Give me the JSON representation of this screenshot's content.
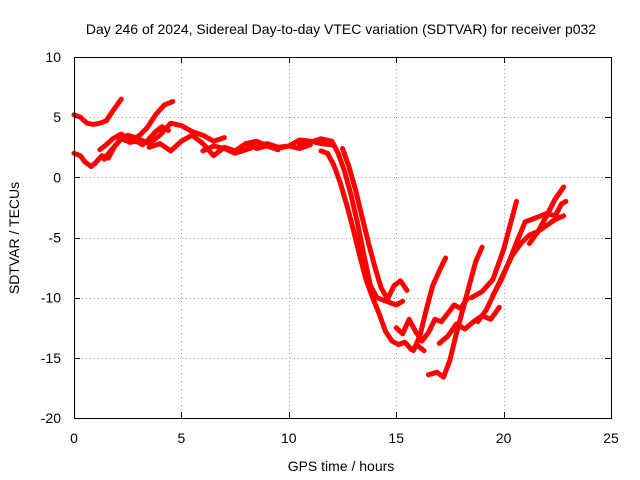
{
  "chart_data": {
    "type": "line",
    "title": "Day 246 of 2024, Sidereal Day-to-day VTEC variation (SDTVAR) for receiver p032",
    "xlabel": "GPS time / hours",
    "ylabel": "SDTVAR / TECUs",
    "xlim": [
      0,
      25
    ],
    "ylim": [
      -20,
      10
    ],
    "xticks": [
      0,
      5,
      10,
      15,
      20,
      25
    ],
    "yticks": [
      -20,
      -15,
      -10,
      -5,
      0,
      5,
      10
    ],
    "grid": true,
    "series_color": "#ff0000",
    "series": [
      {
        "name": "trace-1",
        "x": [
          0.0,
          0.3,
          0.6,
          0.9,
          1.2,
          1.5,
          1.8,
          2.0,
          2.2
        ],
        "y": [
          5.2,
          5.0,
          4.5,
          4.4,
          4.5,
          4.7,
          5.5,
          6.0,
          6.5
        ]
      },
      {
        "name": "trace-2",
        "x": [
          0.0,
          0.3,
          0.5,
          0.8,
          1.0,
          1.3,
          1.6,
          1.9,
          2.2,
          2.5,
          2.8,
          3.0
        ],
        "y": [
          2.0,
          1.8,
          1.3,
          0.9,
          1.2,
          1.8,
          1.6,
          2.6,
          3.2,
          3.0,
          3.3,
          3.4
        ]
      },
      {
        "name": "trace-3",
        "x": [
          1.2,
          1.5,
          1.8,
          2.2,
          2.6,
          3.0,
          3.4,
          3.8,
          4.2,
          4.6
        ],
        "y": [
          2.3,
          2.7,
          3.2,
          3.6,
          3.1,
          3.4,
          4.1,
          5.2,
          6.0,
          6.3
        ]
      },
      {
        "name": "trace-4",
        "x": [
          1.4,
          1.7,
          2.0,
          2.3,
          2.6,
          2.9,
          3.2,
          3.5,
          3.8,
          4.1,
          4.4
        ],
        "y": [
          1.5,
          2.2,
          2.8,
          3.4,
          2.9,
          3.0,
          2.7,
          3.2,
          3.8,
          4.2,
          3.9
        ]
      },
      {
        "name": "trace-5",
        "x": [
          2.5,
          3.0,
          3.5,
          4.0,
          4.5,
          5.0,
          5.5,
          6.0,
          6.5,
          7.0
        ],
        "y": [
          3.5,
          3.2,
          2.8,
          3.5,
          4.5,
          4.3,
          3.8,
          3.5,
          3.0,
          3.3
        ]
      },
      {
        "name": "trace-6",
        "x": [
          3.5,
          4.0,
          4.5,
          5.0,
          5.5,
          6.0,
          6.5,
          7.0,
          7.5,
          8.0,
          8.5,
          9.0,
          9.5
        ],
        "y": [
          2.5,
          2.8,
          2.2,
          3.0,
          3.5,
          2.8,
          1.8,
          2.5,
          2.2,
          2.8,
          2.4,
          2.6,
          2.3
        ]
      },
      {
        "name": "trace-7",
        "x": [
          6.0,
          6.5,
          7.0,
          7.5,
          8.0,
          8.5,
          9.0,
          9.5,
          10.0,
          10.5,
          11.0
        ],
        "y": [
          2.2,
          2.6,
          2.4,
          2.0,
          2.3,
          2.6,
          2.8,
          2.5,
          2.6,
          2.4,
          2.7
        ]
      },
      {
        "name": "trace-8",
        "x": [
          8.0,
          8.5,
          9.0,
          9.5,
          10.0,
          10.5,
          11.0,
          11.5,
          12.0
        ],
        "y": [
          2.8,
          3.0,
          2.6,
          2.4,
          2.6,
          3.1,
          3.0,
          2.8,
          2.7
        ]
      },
      {
        "name": "trace-9",
        "x": [
          10.5,
          11.0,
          11.5,
          12.0,
          12.3,
          12.6,
          12.9,
          13.2,
          13.5,
          13.8,
          14.1,
          14.4,
          14.7,
          15.0,
          15.3
        ],
        "y": [
          2.7,
          2.9,
          3.2,
          3.0,
          2.0,
          0.5,
          -1.5,
          -3.8,
          -6.5,
          -9.0,
          -10.0,
          -10.2,
          -10.4,
          -10.6,
          -10.3
        ]
      },
      {
        "name": "trace-10",
        "x": [
          11.5,
          11.8,
          12.1,
          12.4,
          12.7,
          13.0,
          13.3,
          13.6,
          13.9,
          14.2,
          14.5,
          14.8,
          15.1,
          15.4,
          15.7,
          16.0,
          16.3
        ],
        "y": [
          2.2,
          2.0,
          1.0,
          -0.5,
          -2.3,
          -4.3,
          -6.5,
          -8.5,
          -10.0,
          -11.3,
          -12.8,
          -13.6,
          -13.9,
          -13.7,
          -14.3,
          -14.0,
          -14.4
        ]
      },
      {
        "name": "trace-11",
        "x": [
          12.5,
          12.8,
          13.1,
          13.4,
          13.7,
          14.0,
          14.3,
          14.6,
          14.9,
          15.2,
          15.5
        ],
        "y": [
          2.4,
          0.9,
          -1.0,
          -3.2,
          -5.4,
          -7.4,
          -9.2,
          -10.1,
          -9.0,
          -8.6,
          -9.4
        ]
      },
      {
        "name": "trace-12",
        "x": [
          15.0,
          15.3,
          15.6,
          15.9,
          16.2,
          16.5,
          16.8,
          17.1,
          17.4,
          17.7,
          18.0,
          18.3
        ],
        "y": [
          -12.5,
          -13.0,
          -11.8,
          -12.8,
          -13.6,
          -12.9,
          -11.8,
          -12.0,
          -11.3,
          -10.6,
          -10.9,
          -10.1
        ]
      },
      {
        "name": "trace-13",
        "x": [
          15.8,
          16.1,
          16.4,
          16.7,
          17.0,
          17.3
        ],
        "y": [
          -14.4,
          -13.2,
          -11.0,
          -9.0,
          -7.8,
          -6.7
        ]
      },
      {
        "name": "trace-14",
        "x": [
          16.5,
          16.9,
          17.2,
          17.5,
          17.8,
          18.1,
          18.4,
          18.7,
          19.0
        ],
        "y": [
          -16.4,
          -16.2,
          -16.6,
          -15.2,
          -13.0,
          -11.0,
          -9.0,
          -7.0,
          -5.8
        ]
      },
      {
        "name": "trace-15",
        "x": [
          17.0,
          17.4,
          17.8,
          18.2,
          18.6,
          19.0,
          19.4,
          19.8
        ],
        "y": [
          -13.8,
          -13.2,
          -12.2,
          -12.6,
          -12.0,
          -11.5,
          -11.8,
          -10.8
        ]
      },
      {
        "name": "trace-16",
        "x": [
          18.8,
          19.2,
          19.6,
          20.0,
          20.4,
          20.8,
          21.2,
          21.6,
          22.0,
          22.4,
          22.8
        ],
        "y": [
          -12.0,
          -11.0,
          -9.5,
          -8.0,
          -6.5,
          -5.5,
          -4.8,
          -4.5,
          -4.0,
          -3.5,
          -3.2
        ]
      },
      {
        "name": "trace-17",
        "x": [
          19.5,
          19.9,
          20.3,
          20.7,
          21.0,
          21.3,
          21.6,
          22.0,
          22.4,
          22.7,
          22.9
        ],
        "y": [
          -9.8,
          -8.5,
          -6.8,
          -5.0,
          -3.7,
          -3.5,
          -3.3,
          -3.0,
          -3.2,
          -2.2,
          -2.0
        ]
      },
      {
        "name": "trace-18",
        "x": [
          18.5,
          19.0,
          19.5,
          20.0,
          20.3,
          20.6
        ],
        "y": [
          -10.0,
          -9.5,
          -8.5,
          -6.0,
          -4.0,
          -2.0
        ]
      },
      {
        "name": "trace-19",
        "x": [
          21.2,
          21.6,
          22.0,
          22.4,
          22.8
        ],
        "y": [
          -5.5,
          -4.5,
          -3.2,
          -1.8,
          -0.8
        ]
      }
    ]
  }
}
